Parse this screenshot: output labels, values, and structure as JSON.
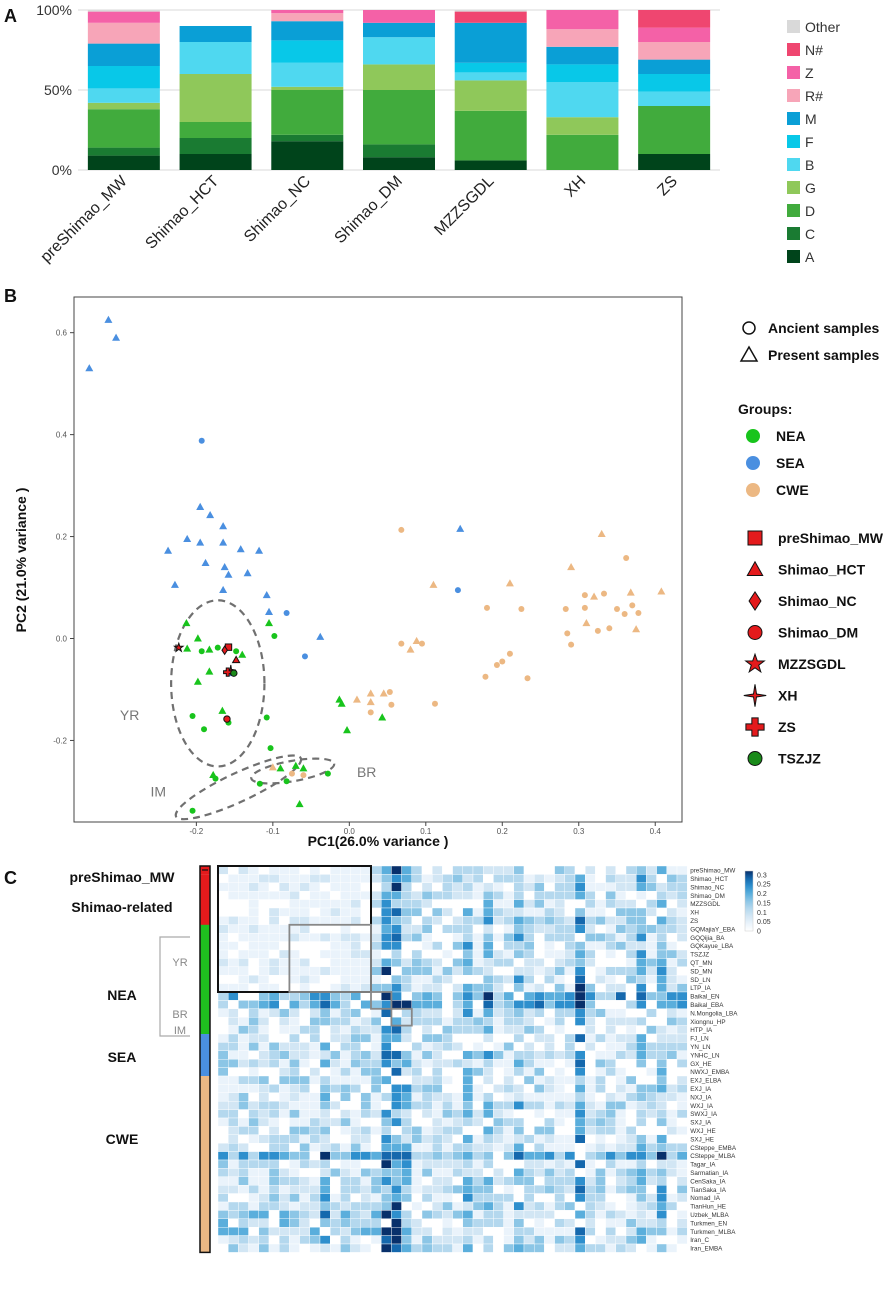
{
  "panels": [
    "A",
    "B",
    "C"
  ],
  "chart_data": [
    {
      "type": "bar",
      "stacked": true,
      "panel": "A",
      "title": "",
      "xlabel": "",
      "ylabel": "",
      "ylim": [
        0,
        100
      ],
      "yticks": [
        "0%",
        "50%",
        "100%"
      ],
      "categories": [
        "preShimao_MW",
        "Shimao_HCT",
        "Shimao_NC",
        "Shimao_DM",
        "MZZSGDL",
        "XH",
        "ZS"
      ],
      "legend_position": "right",
      "series": [
        {
          "name": "A",
          "color": "#00441b",
          "values": [
            9,
            10,
            18,
            8,
            6,
            0,
            10
          ]
        },
        {
          "name": "C",
          "color": "#1a7b32",
          "values": [
            5,
            10,
            4,
            8,
            0,
            0,
            0
          ]
        },
        {
          "name": "D",
          "color": "#41ab3d",
          "values": [
            24,
            10,
            28,
            34,
            31,
            22,
            30
          ]
        },
        {
          "name": "G",
          "color": "#8fc85a",
          "values": [
            4,
            30,
            2,
            16,
            19,
            11,
            0
          ]
        },
        {
          "name": "B",
          "color": "#4fd8f0",
          "values": [
            9,
            20,
            15,
            17,
            5,
            22,
            9
          ]
        },
        {
          "name": "F",
          "color": "#08c8e8",
          "values": [
            14,
            0,
            14,
            0,
            6,
            11,
            11
          ]
        },
        {
          "name": "M",
          "color": "#0a9fd6",
          "values": [
            14,
            10,
            12,
            9,
            25,
            11,
            9
          ]
        },
        {
          "name": "R#",
          "color": "#f7a5b8",
          "values": [
            13,
            0,
            5,
            0,
            0,
            11,
            11
          ]
        },
        {
          "name": "Z",
          "color": "#f461a7",
          "values": [
            7,
            0,
            2,
            8,
            0,
            12,
            9
          ]
        },
        {
          "name": "N#",
          "color": "#ef4670",
          "values": [
            0,
            0,
            0,
            0,
            7,
            0,
            11
          ]
        },
        {
          "name": "Other",
          "color": "#d9d9d9",
          "values": [
            1,
            0,
            0,
            0,
            1,
            0,
            0
          ]
        }
      ],
      "legend_order": [
        "Other",
        "N#",
        "Z",
        "R#",
        "M",
        "F",
        "B",
        "G",
        "D",
        "C",
        "A"
      ]
    },
    {
      "type": "scatter",
      "panel": "B",
      "xlabel": "PC1(26.0% variance )",
      "ylabel": "PC2 (21.0% variance )",
      "xlim": [
        -0.36,
        0.435
      ],
      "ylim": [
        -0.36,
        0.67
      ],
      "xticks": [
        -0.2,
        -0.1,
        0.0,
        0.1,
        0.2,
        0.3,
        0.4
      ],
      "xtick_labels": [
        "-0.2",
        "-0.1",
        "0.0",
        "0.1",
        "0.2",
        "0.3",
        "0.4"
      ],
      "yticks": [
        -0.2,
        0.0,
        0.2,
        0.4,
        0.6
      ],
      "ytick_labels": [
        "-0.2",
        "0.0",
        "0.2",
        "0.4",
        "0.6"
      ],
      "shape_legend": [
        {
          "shape": "circle",
          "label": "Ancient samples"
        },
        {
          "shape": "triangle",
          "label": "Present samples"
        }
      ],
      "groups_title": "Groups:",
      "groups": [
        {
          "name": "NEA",
          "color": "#18c41c"
        },
        {
          "name": "SEA",
          "color": "#4a8fe0"
        },
        {
          "name": "CWE",
          "color": "#ecb883"
        }
      ],
      "target_legend": [
        {
          "name": "preShimao_MW",
          "shape": "square",
          "color": "#e41a1c"
        },
        {
          "name": "Shimao_HCT",
          "shape": "triangle",
          "color": "#e41a1c"
        },
        {
          "name": "Shimao_NC",
          "shape": "diamond",
          "color": "#e41a1c"
        },
        {
          "name": "Shimao_DM",
          "shape": "circle",
          "color": "#e41a1c"
        },
        {
          "name": "MZZSGDL",
          "shape": "star",
          "color": "#e41a1c"
        },
        {
          "name": "XH",
          "shape": "sparkle",
          "color": "#e41a1c"
        },
        {
          "name": "ZS",
          "shape": "cross",
          "color": "#e41a1c"
        },
        {
          "name": "TSZJZ",
          "shape": "circle",
          "color": "#1a8a1a"
        }
      ],
      "ellipse_labels": [
        "YR",
        "IM",
        "BR"
      ],
      "ellipses": [
        {
          "label": "YR",
          "cx": -0.172,
          "cy": -0.088,
          "rx": 0.061,
          "ry": 0.163,
          "angle": 0
        },
        {
          "label": "IM",
          "cx": -0.145,
          "cy": -0.292,
          "rx": 0.09,
          "ry": 0.028,
          "angle": -25
        },
        {
          "label": "BR",
          "cx": -0.074,
          "cy": -0.26,
          "rx": 0.055,
          "ry": 0.02,
          "angle": -10
        }
      ],
      "points": [
        {
          "x": -0.34,
          "y": 0.53,
          "g": "SEA",
          "s": "tri"
        },
        {
          "x": -0.315,
          "y": 0.625,
          "g": "SEA",
          "s": "tri"
        },
        {
          "x": -0.305,
          "y": 0.59,
          "g": "SEA",
          "s": "tri"
        },
        {
          "x": -0.193,
          "y": 0.388,
          "g": "SEA",
          "s": "circle"
        },
        {
          "x": -0.195,
          "y": 0.258,
          "g": "SEA",
          "s": "tri"
        },
        {
          "x": -0.182,
          "y": 0.242,
          "g": "SEA",
          "s": "tri"
        },
        {
          "x": -0.165,
          "y": 0.22,
          "g": "SEA",
          "s": "tri"
        },
        {
          "x": -0.237,
          "y": 0.172,
          "g": "SEA",
          "s": "tri"
        },
        {
          "x": -0.212,
          "y": 0.195,
          "g": "SEA",
          "s": "tri"
        },
        {
          "x": -0.195,
          "y": 0.188,
          "g": "SEA",
          "s": "tri"
        },
        {
          "x": -0.165,
          "y": 0.188,
          "g": "SEA",
          "s": "tri"
        },
        {
          "x": -0.142,
          "y": 0.175,
          "g": "SEA",
          "s": "tri"
        },
        {
          "x": -0.118,
          "y": 0.172,
          "g": "SEA",
          "s": "tri"
        },
        {
          "x": -0.188,
          "y": 0.148,
          "g": "SEA",
          "s": "tri"
        },
        {
          "x": -0.163,
          "y": 0.14,
          "g": "SEA",
          "s": "tri"
        },
        {
          "x": -0.158,
          "y": 0.125,
          "g": "SEA",
          "s": "tri"
        },
        {
          "x": -0.133,
          "y": 0.128,
          "g": "SEA",
          "s": "tri"
        },
        {
          "x": -0.228,
          "y": 0.105,
          "g": "SEA",
          "s": "tri"
        },
        {
          "x": -0.165,
          "y": 0.095,
          "g": "SEA",
          "s": "tri"
        },
        {
          "x": -0.108,
          "y": 0.085,
          "g": "SEA",
          "s": "tri"
        },
        {
          "x": -0.105,
          "y": 0.052,
          "g": "SEA",
          "s": "tri"
        },
        {
          "x": -0.082,
          "y": 0.05,
          "g": "SEA",
          "s": "circle"
        },
        {
          "x": -0.038,
          "y": 0.003,
          "g": "SEA",
          "s": "tri"
        },
        {
          "x": -0.058,
          "y": -0.035,
          "g": "SEA",
          "s": "circle"
        },
        {
          "x": -0.155,
          "y": -0.068,
          "g": "SEA",
          "s": "tri"
        },
        {
          "x": 0.145,
          "y": 0.215,
          "g": "SEA",
          "s": "tri"
        },
        {
          "x": 0.142,
          "y": 0.095,
          "g": "SEA",
          "s": "circle"
        },
        {
          "x": -0.213,
          "y": 0.03,
          "g": "NEA",
          "s": "tri"
        },
        {
          "x": -0.198,
          "y": 0.0,
          "g": "NEA",
          "s": "tri"
        },
        {
          "x": -0.212,
          "y": -0.02,
          "g": "NEA",
          "s": "tri"
        },
        {
          "x": -0.183,
          "y": -0.022,
          "g": "NEA",
          "s": "tri"
        },
        {
          "x": -0.193,
          "y": -0.025,
          "g": "NEA",
          "s": "circle"
        },
        {
          "x": -0.172,
          "y": -0.018,
          "g": "NEA",
          "s": "circle"
        },
        {
          "x": -0.183,
          "y": -0.065,
          "g": "NEA",
          "s": "tri"
        },
        {
          "x": -0.148,
          "y": -0.025,
          "g": "NEA",
          "s": "circle"
        },
        {
          "x": -0.14,
          "y": -0.032,
          "g": "NEA",
          "s": "tri"
        },
        {
          "x": -0.198,
          "y": -0.085,
          "g": "NEA",
          "s": "tri"
        },
        {
          "x": -0.105,
          "y": 0.03,
          "g": "NEA",
          "s": "tri"
        },
        {
          "x": -0.098,
          "y": 0.005,
          "g": "NEA",
          "s": "circle"
        },
        {
          "x": -0.205,
          "y": -0.152,
          "g": "NEA",
          "s": "circle"
        },
        {
          "x": -0.166,
          "y": -0.142,
          "g": "NEA",
          "s": "tri"
        },
        {
          "x": -0.108,
          "y": -0.155,
          "g": "NEA",
          "s": "circle"
        },
        {
          "x": -0.158,
          "y": -0.165,
          "g": "NEA",
          "s": "circle"
        },
        {
          "x": -0.19,
          "y": -0.178,
          "g": "NEA",
          "s": "circle"
        },
        {
          "x": -0.103,
          "y": -0.215,
          "g": "NEA",
          "s": "circle"
        },
        {
          "x": -0.178,
          "y": -0.268,
          "g": "NEA",
          "s": "tri"
        },
        {
          "x": -0.175,
          "y": -0.275,
          "g": "NEA",
          "s": "circle"
        },
        {
          "x": -0.117,
          "y": -0.285,
          "g": "NEA",
          "s": "circle"
        },
        {
          "x": -0.205,
          "y": -0.338,
          "g": "NEA",
          "s": "circle"
        },
        {
          "x": -0.082,
          "y": -0.28,
          "g": "NEA",
          "s": "circle"
        },
        {
          "x": -0.09,
          "y": -0.255,
          "g": "NEA",
          "s": "tri"
        },
        {
          "x": -0.07,
          "y": -0.25,
          "g": "NEA",
          "s": "tri"
        },
        {
          "x": -0.06,
          "y": -0.255,
          "g": "NEA",
          "s": "tri"
        },
        {
          "x": -0.028,
          "y": -0.265,
          "g": "NEA",
          "s": "circle"
        },
        {
          "x": -0.065,
          "y": -0.325,
          "g": "NEA",
          "s": "tri"
        },
        {
          "x": -0.013,
          "y": -0.12,
          "g": "NEA",
          "s": "tri"
        },
        {
          "x": -0.01,
          "y": -0.128,
          "g": "NEA",
          "s": "tri"
        },
        {
          "x": -0.003,
          "y": -0.18,
          "g": "NEA",
          "s": "tri"
        },
        {
          "x": 0.043,
          "y": -0.155,
          "g": "NEA",
          "s": "tri"
        },
        {
          "x": -0.1,
          "y": -0.253,
          "g": "CWE",
          "s": "tri"
        },
        {
          "x": -0.075,
          "y": -0.265,
          "g": "CWE",
          "s": "circle"
        },
        {
          "x": -0.06,
          "y": -0.268,
          "g": "CWE",
          "s": "circle"
        },
        {
          "x": 0.01,
          "y": -0.12,
          "g": "CWE",
          "s": "tri"
        },
        {
          "x": 0.028,
          "y": -0.108,
          "g": "CWE",
          "s": "tri"
        },
        {
          "x": 0.028,
          "y": -0.125,
          "g": "CWE",
          "s": "tri"
        },
        {
          "x": 0.045,
          "y": -0.108,
          "g": "CWE",
          "s": "tri"
        },
        {
          "x": 0.055,
          "y": -0.13,
          "g": "CWE",
          "s": "circle"
        },
        {
          "x": 0.053,
          "y": -0.105,
          "g": "CWE",
          "s": "circle"
        },
        {
          "x": 0.028,
          "y": -0.145,
          "g": "CWE",
          "s": "circle"
        },
        {
          "x": 0.068,
          "y": 0.213,
          "g": "CWE",
          "s": "circle"
        },
        {
          "x": 0.068,
          "y": -0.01,
          "g": "CWE",
          "s": "circle"
        },
        {
          "x": 0.08,
          "y": -0.022,
          "g": "CWE",
          "s": "tri"
        },
        {
          "x": 0.088,
          "y": -0.005,
          "g": "CWE",
          "s": "tri"
        },
        {
          "x": 0.095,
          "y": -0.01,
          "g": "CWE",
          "s": "circle"
        },
        {
          "x": 0.112,
          "y": -0.128,
          "g": "CWE",
          "s": "circle"
        },
        {
          "x": 0.178,
          "y": -0.075,
          "g": "CWE",
          "s": "circle"
        },
        {
          "x": 0.193,
          "y": -0.052,
          "g": "CWE",
          "s": "circle"
        },
        {
          "x": 0.2,
          "y": -0.045,
          "g": "CWE",
          "s": "circle"
        },
        {
          "x": 0.21,
          "y": -0.03,
          "g": "CWE",
          "s": "circle"
        },
        {
          "x": 0.225,
          "y": 0.058,
          "g": "CWE",
          "s": "circle"
        },
        {
          "x": 0.21,
          "y": 0.108,
          "g": "CWE",
          "s": "tri"
        },
        {
          "x": 0.233,
          "y": -0.078,
          "g": "CWE",
          "s": "circle"
        },
        {
          "x": 0.283,
          "y": 0.058,
          "g": "CWE",
          "s": "circle"
        },
        {
          "x": 0.29,
          "y": 0.14,
          "g": "CWE",
          "s": "tri"
        },
        {
          "x": 0.285,
          "y": 0.01,
          "g": "CWE",
          "s": "circle"
        },
        {
          "x": 0.29,
          "y": -0.012,
          "g": "CWE",
          "s": "circle"
        },
        {
          "x": 0.308,
          "y": 0.085,
          "g": "CWE",
          "s": "circle"
        },
        {
          "x": 0.308,
          "y": 0.06,
          "g": "CWE",
          "s": "circle"
        },
        {
          "x": 0.31,
          "y": 0.03,
          "g": "CWE",
          "s": "tri"
        },
        {
          "x": 0.32,
          "y": 0.082,
          "g": "CWE",
          "s": "tri"
        },
        {
          "x": 0.325,
          "y": 0.015,
          "g": "CWE",
          "s": "circle"
        },
        {
          "x": 0.33,
          "y": 0.205,
          "g": "CWE",
          "s": "tri"
        },
        {
          "x": 0.333,
          "y": 0.088,
          "g": "CWE",
          "s": "circle"
        },
        {
          "x": 0.34,
          "y": 0.02,
          "g": "CWE",
          "s": "circle"
        },
        {
          "x": 0.35,
          "y": 0.058,
          "g": "CWE",
          "s": "circle"
        },
        {
          "x": 0.36,
          "y": 0.048,
          "g": "CWE",
          "s": "circle"
        },
        {
          "x": 0.362,
          "y": 0.158,
          "g": "CWE",
          "s": "circle"
        },
        {
          "x": 0.368,
          "y": 0.09,
          "g": "CWE",
          "s": "tri"
        },
        {
          "x": 0.37,
          "y": 0.065,
          "g": "CWE",
          "s": "circle"
        },
        {
          "x": 0.375,
          "y": 0.018,
          "g": "CWE",
          "s": "tri"
        },
        {
          "x": 0.378,
          "y": 0.05,
          "g": "CWE",
          "s": "circle"
        },
        {
          "x": 0.408,
          "y": 0.092,
          "g": "CWE",
          "s": "tri"
        },
        {
          "x": 0.11,
          "y": 0.105,
          "g": "CWE",
          "s": "tri"
        },
        {
          "x": 0.18,
          "y": 0.06,
          "g": "CWE",
          "s": "circle"
        }
      ],
      "targets": [
        {
          "name": "preShimao_MW",
          "x": -0.158,
          "y": -0.017
        },
        {
          "name": "Shimao_HCT",
          "x": -0.148,
          "y": -0.042
        },
        {
          "name": "Shimao_NC",
          "x": -0.163,
          "y": -0.023
        },
        {
          "name": "Shimao_DM",
          "x": -0.16,
          "y": -0.158
        },
        {
          "name": "MZZSGDL",
          "x": -0.223,
          "y": -0.018
        },
        {
          "name": "XH",
          "x": -0.155,
          "y": -0.062
        },
        {
          "name": "ZS",
          "x": -0.159,
          "y": -0.066
        },
        {
          "name": "TSZJZ",
          "x": -0.151,
          "y": -0.068
        }
      ]
    },
    {
      "type": "heatmap",
      "panel": "C",
      "rows": [
        "preShimao_MW",
        "Shimao_HCT",
        "Shimao_NC",
        "Shimao_DM",
        "MZZSGDL",
        "XH",
        "ZS",
        "GQMajiaY_EBA",
        "GQQijia_BA",
        "GQKayue_LBA",
        "TSZJZ",
        "QT_MN",
        "SD_MN",
        "SD_LN",
        "LTP_IA",
        "Baikal_EN",
        "Baikal_EBA",
        "N.Mongolia_LBA",
        "Xiongnu_HP",
        "HTP_IA",
        "FJ_LN",
        "YN_LN",
        "YNHC_LN",
        "GX_HE",
        "NWXJ_EMBA",
        "EXJ_ELBA",
        "EXJ_IA",
        "NXJ_IA",
        "WXJ_IA",
        "SWXJ_IA",
        "SXJ_IA",
        "WXJ_HE",
        "SXJ_HE",
        "CSteppe_EMBA",
        "CSteppe_MLBA",
        "Tagar_IA",
        "Sarmatian_IA",
        "CenSaka_IA",
        "TianSaka_IA",
        "Nomad_IA",
        "TianHun_HE",
        "Uzbek_MLBA",
        "Turkmen_EN",
        "Turkmen_MLBA",
        "Iran_C",
        "Iran_EMBA"
      ],
      "ncols": 46,
      "colorbar_ticks": [
        "0.3",
        "0.25",
        "0.2",
        "0.15",
        "0.1",
        "0.05",
        "0"
      ],
      "colorbar_range": [
        0,
        0.32
      ],
      "group_labels": [
        "preShimao_MW",
        "Shimao-related",
        "NEA",
        "SEA",
        "CWE"
      ],
      "sub_labels": [
        "YR",
        "BR",
        "IM"
      ],
      "annotation_bar": [
        {
          "group": "preShimao_MW",
          "color": "#e41a1c"
        },
        {
          "group": "Shimao-related",
          "color": "#e41a1c"
        },
        {
          "group": "NEA",
          "color": "#1fbf1f"
        },
        {
          "group": "SEA",
          "color": "#4a8fe0"
        },
        {
          "group": "CWE",
          "color": "#ecb883"
        }
      ]
    }
  ]
}
